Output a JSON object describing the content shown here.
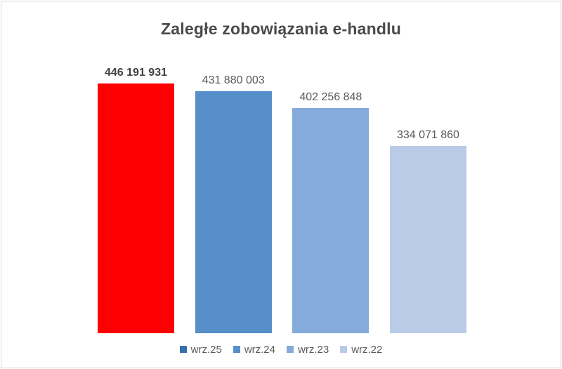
{
  "frame": {
    "background": "#ffffff",
    "border_color": "#d6d6d6"
  },
  "chart_data": {
    "type": "bar",
    "title": "Zaległe zobowiązania e-handlu",
    "title_color": "#4a4a4a",
    "categories": [
      "wrz.25",
      "wrz.24",
      "wrz.23",
      "wrz.22"
    ],
    "values": [
      446191931,
      431880003,
      402256848,
      334071860
    ],
    "data_labels": [
      "446 191 931",
      "431 880 003",
      "402 256 848",
      "334 071 860"
    ],
    "data_label_bold": [
      true,
      false,
      false,
      false
    ],
    "bar_colors": [
      "#fe0000",
      "#568fc9",
      "#84abdb",
      "#b9cbe6"
    ],
    "legend_colors": [
      "#3a70ac",
      "#568fc9",
      "#84abdb",
      "#b9cbe6"
    ],
    "data_label_color": "#595959",
    "data_label_bold_color": "#404040",
    "legend_text_color": "#595959",
    "ylim": [
      0,
      446191931
    ],
    "grid": false,
    "axes_visible": false,
    "legend_position": "bottom"
  }
}
